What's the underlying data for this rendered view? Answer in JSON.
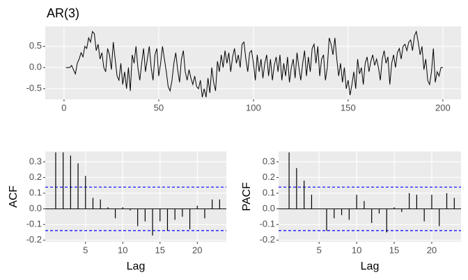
{
  "chart_data": [
    {
      "type": "line",
      "title": "AR(3)",
      "x": [
        1,
        2,
        3,
        4,
        5,
        6,
        7,
        8,
        9,
        10,
        11,
        12,
        13,
        14,
        15,
        16,
        17,
        18,
        19,
        20,
        21,
        22,
        23,
        24,
        25,
        26,
        27,
        28,
        29,
        30,
        31,
        32,
        33,
        34,
        35,
        36,
        37,
        38,
        39,
        40,
        41,
        42,
        43,
        44,
        45,
        46,
        47,
        48,
        49,
        50,
        51,
        52,
        53,
        54,
        55,
        56,
        57,
        58,
        59,
        60,
        61,
        62,
        63,
        64,
        65,
        66,
        67,
        68,
        69,
        70,
        71,
        72,
        73,
        74,
        75,
        76,
        77,
        78,
        79,
        80,
        81,
        82,
        83,
        84,
        85,
        86,
        87,
        88,
        89,
        90,
        91,
        92,
        93,
        94,
        95,
        96,
        97,
        98,
        99,
        100,
        101,
        102,
        103,
        104,
        105,
        106,
        107,
        108,
        109,
        110,
        111,
        112,
        113,
        114,
        115,
        116,
        117,
        118,
        119,
        120,
        121,
        122,
        123,
        124,
        125,
        126,
        127,
        128,
        129,
        130,
        131,
        132,
        133,
        134,
        135,
        136,
        137,
        138,
        139,
        140,
        141,
        142,
        143,
        144,
        145,
        146,
        147,
        148,
        149,
        150,
        151,
        152,
        153,
        154,
        155,
        156,
        157,
        158,
        159,
        160,
        161,
        162,
        163,
        164,
        165,
        166,
        167,
        168,
        169,
        170,
        171,
        172,
        173,
        174,
        175,
        176,
        177,
        178,
        179,
        180,
        181,
        182,
        183,
        184,
        185,
        186,
        187,
        188,
        189,
        190,
        191,
        192,
        193,
        194,
        195,
        196,
        197,
        198,
        199,
        200
      ],
      "values": [
        0.0,
        0.0,
        0.0,
        0.05,
        -0.05,
        -0.15,
        0.1,
        0.2,
        0.35,
        0.25,
        0.5,
        0.45,
        0.7,
        0.6,
        0.85,
        0.8,
        0.4,
        0.55,
        0.2,
        0.35,
        0.0,
        -0.1,
        0.45,
        0.3,
        -0.05,
        0.6,
        0.2,
        -0.2,
        -0.3,
        0.1,
        -0.4,
        -0.1,
        -0.5,
        0.0,
        -0.55,
        0.3,
        0.1,
        0.5,
        0.0,
        -0.3,
        0.1,
        0.45,
        -0.1,
        0.2,
        0.5,
        0.0,
        -0.3,
        0.3,
        0.45,
        -0.2,
        0.1,
        0.5,
        0.2,
        -0.1,
        -0.45,
        -0.55,
        -0.3,
        0.1,
        0.35,
        -0.05,
        -0.35,
        0.2,
        0.4,
        -0.1,
        -0.3,
        -0.05,
        -0.25,
        -0.4,
        -0.2,
        -0.45,
        -0.5,
        -0.3,
        -0.7,
        -0.5,
        -0.7,
        -0.25,
        -0.6,
        0.0,
        -0.35,
        -0.55,
        0.15,
        -0.1,
        0.3,
        0.0,
        0.4,
        0.1,
        0.35,
        -0.1,
        0.25,
        0.45,
        0.1,
        0.3,
        0.0,
        0.55,
        0.6,
        0.2,
        -0.1,
        0.35,
        0.4,
        0.1,
        -0.3,
        0.3,
        -0.1,
        0.2,
        -0.25,
        0.1,
        0.3,
        -0.2,
        0.2,
        -0.3,
        0.05,
        0.25,
        -0.1,
        0.3,
        -0.3,
        0.1,
        -0.2,
        0.25,
        -0.35,
        0.0,
        0.2,
        -0.25,
        0.35,
        0.0,
        -0.3,
        0.1,
        0.4,
        -0.2,
        0.25,
        -0.1,
        0.45,
        0.55,
        0.1,
        0.5,
        -0.2,
        0.2,
        0.3,
        -0.3,
        0.0,
        0.7,
        0.55,
        0.3,
        0.7,
        0.2,
        -0.2,
        0.1,
        -0.35,
        0.0,
        -0.5,
        -0.3,
        -0.65,
        -0.4,
        -0.1,
        -0.5,
        0.2,
        -0.15,
        0.0,
        -0.4,
        0.1,
        0.25,
        -0.1,
        0.15,
        0.3,
        0.05,
        0.2,
        0.0,
        -0.3,
        0.2,
        0.4,
        0.1,
        0.25,
        -0.4,
        0.1,
        0.3,
        0.0,
        0.35,
        0.45,
        0.2,
        0.5,
        0.55,
        0.4,
        0.6,
        0.65,
        0.4,
        0.75,
        0.85,
        0.6,
        0.3,
        0.5,
        -0.05,
        0.2,
        -0.3,
        -0.4,
        -0.1,
        0.45,
        -0.35,
        -0.1,
        -0.2,
        0.0,
        0.0
      ],
      "color": "#000000",
      "xlim": [
        -9.9,
        209.6
      ],
      "xticks": [
        0,
        50,
        100,
        150,
        200
      ],
      "ylim": [
        -0.75,
        0.97
      ],
      "yticks": [
        0.5,
        {
          "value": 0,
          "label": "0.0"
        },
        -0.5
      ],
      "grid": true
    },
    {
      "type": "acf",
      "ylabel": "ACF",
      "xlabel": "Lag",
      "x": [
        1,
        2,
        3,
        4,
        5,
        6,
        7,
        8,
        9,
        10,
        11,
        12,
        13,
        14,
        15,
        16,
        17,
        18,
        19,
        20,
        21,
        22,
        23
      ],
      "values": [
        0.36,
        0.36,
        0.34,
        0.29,
        0.21,
        0.07,
        0.06,
        0.01,
        -0.06,
        0.01,
        -0.01,
        -0.11,
        -0.08,
        -0.17,
        -0.08,
        -0.14,
        -0.07,
        -0.05,
        -0.13,
        0.02,
        -0.06,
        0.06,
        0.06
      ],
      "color": "#000000",
      "ci": 0.1386,
      "ci_color": "#0000ff",
      "xlim": [
        -0.4,
        23.9
      ],
      "xticks": [
        5,
        10,
        15,
        20
      ],
      "ylim": [
        -0.21,
        0.366
      ],
      "yticks": [
        0.3,
        0.2,
        0.1,
        {
          "value": 0,
          "label": "0.0"
        },
        -0.1,
        -0.2
      ],
      "grid": true
    },
    {
      "type": "acf",
      "ylabel": "PACF",
      "xlabel": "Lag",
      "x": [
        1,
        2,
        3,
        4,
        5,
        6,
        7,
        8,
        9,
        10,
        11,
        12,
        13,
        14,
        15,
        16,
        17,
        18,
        19,
        20,
        21,
        22,
        23
      ],
      "values": [
        0.36,
        0.26,
        0.18,
        0.09,
        0.0,
        -0.14,
        -0.06,
        -0.04,
        -0.07,
        0.09,
        0.05,
        -0.09,
        -0.03,
        -0.15,
        0.01,
        -0.02,
        0.1,
        0.09,
        -0.08,
        0.09,
        -0.11,
        0.1,
        0.07
      ],
      "color": "#000000",
      "ci": 0.1386,
      "ci_color": "#0000ff",
      "xlim": [
        -0.4,
        23.9
      ],
      "xticks": [
        5,
        10,
        15,
        20
      ],
      "ylim": [
        -0.21,
        0.366
      ],
      "yticks": [
        0.3,
        0.2,
        0.1,
        {
          "value": 0,
          "label": "0.0"
        },
        -0.1,
        -0.2
      ],
      "grid": true
    }
  ]
}
